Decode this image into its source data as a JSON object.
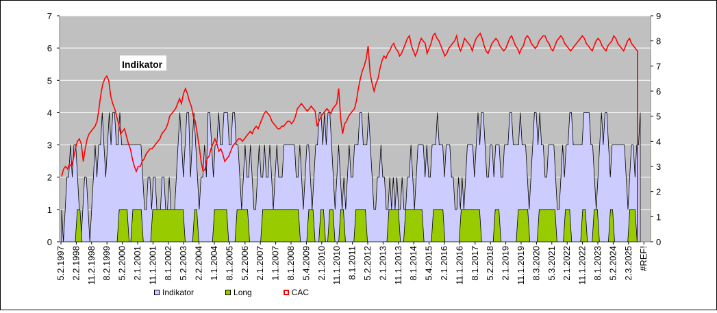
{
  "chart_data": {
    "type": "area",
    "annotation": "Indikator",
    "left_axis": {
      "min": 0,
      "max": 7,
      "ticks": [
        "0",
        "1",
        "2",
        "3",
        "4",
        "5",
        "6",
        "7"
      ]
    },
    "right_axis": {
      "min": 0,
      "max": 9,
      "ticks": [
        "0",
        "1",
        "2",
        "3",
        "4",
        "5",
        "6",
        "7",
        "8",
        "9"
      ]
    },
    "x_tick_labels": [
      "5.2.1997",
      "2.2.1998",
      "11.2.1998",
      "8.2.1999",
      "5.2.2000",
      "2.1.2001",
      "11.1.2001",
      "8.1.2002",
      "5.2.2003",
      "2.2.2004",
      "1.1.2004",
      "8.1.2005",
      "5.2.2006",
      "2.1.2007",
      "1.1.2007",
      "8.1.2008",
      "5.4.2009",
      "2.1.2010",
      "11.1.2010",
      "8.1.2011",
      "5.2.2012",
      "2.1.2013",
      "11.1.2013",
      "8.1.2014",
      "5.4.2015",
      "2.1.2016",
      "11.1.2016",
      "8.1.2017",
      "5.2.2018",
      "2.1.2019",
      "11.1.2019",
      "8.3.2020",
      "5.3.2021",
      "2.1.2022",
      "11.1.2022",
      "8.1.2023",
      "5.2.2024",
      "2.3.2025",
      "#REF!"
    ],
    "grid": true,
    "plot_background": "#c0c0c0",
    "legend_position": "bottom",
    "series": [
      {
        "name": "Indikator",
        "type": "area",
        "axis": "left",
        "color": "#ccccff",
        "line": "#000000",
        "values": [
          1,
          0,
          1,
          2,
          2,
          3,
          2,
          3,
          3,
          2,
          1,
          0,
          1,
          2,
          2,
          1,
          0,
          1,
          2,
          3,
          2,
          3,
          3,
          4,
          3,
          2,
          3,
          4,
          3,
          4,
          4,
          3,
          3,
          4,
          3,
          3,
          3,
          3,
          3,
          3,
          3,
          3,
          3,
          3,
          3,
          3,
          2,
          1,
          1,
          2,
          2,
          1,
          2,
          2,
          1,
          0,
          1,
          2,
          2,
          1,
          1,
          2,
          1,
          0,
          1,
          2,
          3,
          4,
          3,
          2,
          3,
          4,
          4,
          2,
          3,
          4,
          3,
          2,
          1,
          2,
          2,
          3,
          2,
          4,
          4,
          3,
          2,
          3,
          3,
          4,
          3,
          3,
          4,
          4,
          4,
          3,
          3,
          4,
          4,
          3,
          3,
          2,
          1,
          2,
          3,
          2,
          2,
          3,
          2,
          1,
          1,
          2,
          3,
          2,
          2,
          3,
          2,
          2,
          3,
          2,
          1,
          2,
          3,
          2,
          2,
          2,
          3,
          3,
          3,
          3,
          3,
          3,
          3,
          2,
          2,
          3,
          2,
          1,
          2,
          3,
          3,
          2,
          1,
          2,
          3,
          3,
          4,
          4,
          3,
          4,
          3,
          4,
          4,
          3,
          2,
          1,
          2,
          3,
          2,
          1,
          2,
          1,
          2,
          3,
          2,
          2,
          3,
          3,
          3,
          4,
          4,
          3,
          3,
          3,
          4,
          3,
          2,
          1,
          1,
          2,
          2,
          3,
          2,
          2,
          1,
          1,
          2,
          1,
          2,
          1,
          2,
          1,
          1,
          2,
          1,
          1,
          2,
          2,
          3,
          2,
          1,
          2,
          3,
          3,
          3,
          3,
          2,
          3,
          2,
          2,
          3,
          3,
          3,
          4,
          3,
          3,
          3,
          2,
          3,
          3,
          3,
          2,
          2,
          1,
          1,
          2,
          1,
          2,
          1,
          2,
          3,
          3,
          3,
          3,
          2,
          3,
          4,
          3,
          4,
          4,
          3,
          2,
          2,
          3,
          3,
          2,
          3,
          3,
          3,
          2,
          2,
          3,
          3,
          3,
          4,
          4,
          3,
          3,
          3,
          3,
          4,
          3,
          3,
          3,
          2,
          1,
          2,
          3,
          4,
          4,
          3,
          4,
          3,
          3,
          2,
          2,
          3,
          3,
          3,
          3,
          2,
          1,
          1,
          2,
          3,
          2,
          3,
          3,
          4,
          4,
          3,
          3,
          3,
          3,
          3,
          3,
          4,
          4,
          4,
          4,
          3,
          3,
          2,
          1,
          2,
          3,
          4,
          3,
          4,
          4,
          3,
          2,
          3,
          3,
          3,
          3,
          3,
          3,
          3,
          3,
          2,
          1,
          2,
          3,
          3,
          2,
          3,
          3,
          4
        ]
      },
      {
        "name": "Long",
        "type": "area",
        "axis": "left",
        "color": "#99cc00",
        "line": "#000000",
        "segments": [
          [
            0.03,
            0.035
          ],
          [
            0.11,
            0.125
          ],
          [
            0.136,
            0.152
          ],
          [
            0.174,
            0.232
          ],
          [
            0.254,
            0.258
          ],
          [
            0.292,
            0.315
          ],
          [
            0.335,
            0.355
          ],
          [
            0.384,
            0.452
          ],
          [
            0.472,
            0.48
          ],
          [
            0.495,
            0.5
          ],
          [
            0.512,
            0.518
          ],
          [
            0.533,
            0.538
          ],
          [
            0.562,
            0.58
          ],
          [
            0.625,
            0.643
          ],
          [
            0.657,
            0.688
          ],
          [
            0.71,
            0.728
          ],
          [
            0.763,
            0.798
          ],
          [
            0.828,
            0.835
          ],
          [
            0.872,
            0.89
          ],
          [
            0.912,
            0.942
          ],
          [
            0.962,
            0.97
          ],
          [
            0.995,
            1.0
          ],
          [
            1.017,
            1.023
          ],
          [
            1.048,
            1.052
          ],
          [
            1.085,
            1.095
          ]
        ]
      },
      {
        "name": "CAC",
        "type": "line",
        "axis": "right",
        "color": "#ff0000",
        "values": [
          2.6,
          2.9,
          3.0,
          2.9,
          3.1,
          3.0,
          3.3,
          3.7,
          4.0,
          4.1,
          3.9,
          3.2,
          3.7,
          4.1,
          4.3,
          4.4,
          4.5,
          4.6,
          4.8,
          5.3,
          5.9,
          6.3,
          6.5,
          6.6,
          6.4,
          5.8,
          5.5,
          5.3,
          5.0,
          4.7,
          4.3,
          4.4,
          4.5,
          4.2,
          3.9,
          3.7,
          3.3,
          3.0,
          2.8,
          3.0,
          3.0,
          3.2,
          3.3,
          3.5,
          3.6,
          3.7,
          3.7,
          3.8,
          3.9,
          4.0,
          4.1,
          4.3,
          4.4,
          4.5,
          4.7,
          5.0,
          5.1,
          5.2,
          5.3,
          5.5,
          5.7,
          5.5,
          5.9,
          6.1,
          5.9,
          5.6,
          5.4,
          5.0,
          4.8,
          4.3,
          3.8,
          3.2,
          2.8,
          2.9,
          3.3,
          3.4,
          3.7,
          3.9,
          4.1,
          3.9,
          3.6,
          3.7,
          3.5,
          3.2,
          3.3,
          3.4,
          3.6,
          3.8,
          3.9,
          4.0,
          4.1,
          4.1,
          4.0,
          4.1,
          4.2,
          4.3,
          4.4,
          4.3,
          4.5,
          4.6,
          4.5,
          4.7,
          4.9,
          5.1,
          5.2,
          5.1,
          5.0,
          4.8,
          4.7,
          4.6,
          4.5,
          4.5,
          4.6,
          4.6,
          4.7,
          4.8,
          4.8,
          4.7,
          4.8,
          5.0,
          5.3,
          5.4,
          5.5,
          5.4,
          5.3,
          5.2,
          5.3,
          5.4,
          5.3,
          5.2,
          4.6,
          4.8,
          5.0,
          5.1,
          5.2,
          5.3,
          5.2,
          5.1,
          5.3,
          5.4,
          5.5,
          6.1,
          4.9,
          4.3,
          4.7,
          4.8,
          5.0,
          5.1,
          5.2,
          5.3,
          5.6,
          6.1,
          6.5,
          6.8,
          7.0,
          7.3,
          7.8,
          6.7,
          6.3,
          6.0,
          6.3,
          6.5,
          6.9,
          7.2,
          7.4,
          7.3,
          7.5,
          7.6,
          7.8,
          7.9,
          7.7,
          7.6,
          7.4,
          7.5,
          7.7,
          7.9,
          8.1,
          8.2,
          7.8,
          7.6,
          7.4,
          7.6,
          7.9,
          8.1,
          8.0,
          7.9,
          7.5,
          7.7,
          7.9,
          8.2,
          8.3,
          8.1,
          8.0,
          7.8,
          7.6,
          7.4,
          7.5,
          7.7,
          7.8,
          7.9,
          8.0,
          8.2,
          7.8,
          7.6,
          7.8,
          8.1,
          8.0,
          7.9,
          7.8,
          7.6,
          7.9,
          8.1,
          8.2,
          8.3,
          8.1,
          7.8,
          7.6,
          7.5,
          7.7,
          7.9,
          8.0,
          8.1,
          8.0,
          7.8,
          7.7,
          7.6,
          7.7,
          7.9,
          8.1,
          8.2,
          8.0,
          7.8,
          7.7,
          7.5,
          7.7,
          7.8,
          8.1,
          8.2,
          8.1,
          7.9,
          7.8,
          7.7,
          7.8,
          8.0,
          8.1,
          8.2,
          8.2,
          8.0,
          7.9,
          7.7,
          7.6,
          7.8,
          8.0,
          8.1,
          8.2,
          8.1,
          7.9,
          7.8,
          7.7,
          7.6,
          7.7,
          7.8,
          7.9,
          8.0,
          8.1,
          8.2,
          8.1,
          7.9,
          7.8,
          7.7,
          7.6,
          7.8,
          8.0,
          8.1,
          8.0,
          7.8,
          7.7,
          7.6,
          7.8,
          7.9,
          8.0,
          8.2,
          8.1,
          7.9,
          7.8,
          7.7,
          7.6,
          7.8,
          8.0,
          8.1,
          7.9,
          7.8,
          7.7,
          7.6
        ]
      }
    ]
  }
}
